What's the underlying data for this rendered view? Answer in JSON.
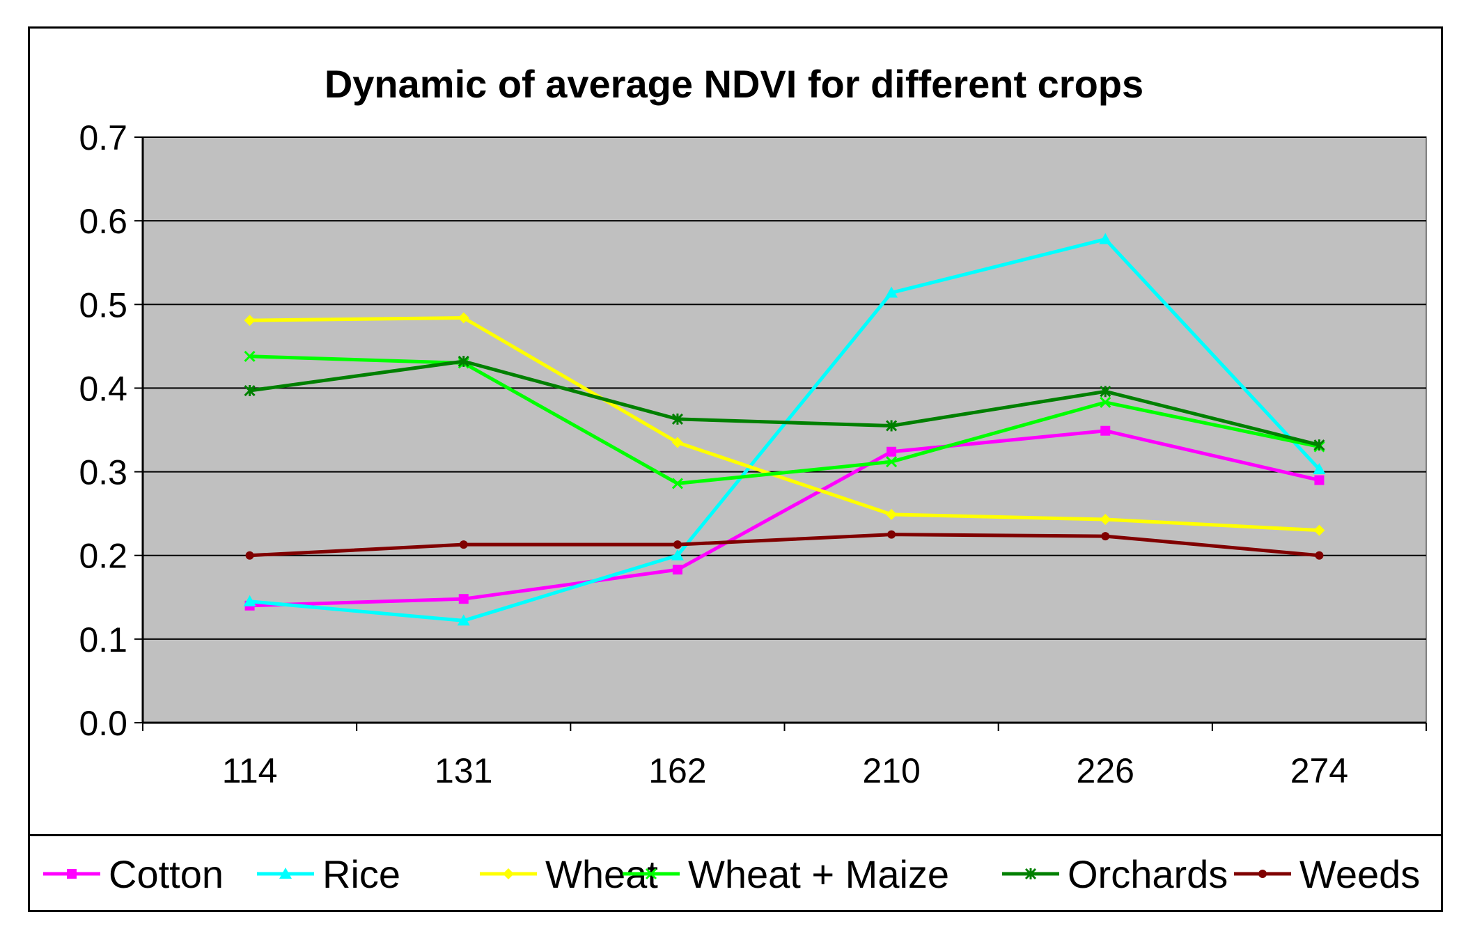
{
  "chart_data": {
    "type": "line",
    "title": "Dynamic of average NDVI for different crops",
    "xlabel": "",
    "ylabel": "",
    "ylim": [
      0,
      0.7
    ],
    "yticks": [
      "0.0",
      "0.1",
      "0.2",
      "0.3",
      "0.4",
      "0.5",
      "0.6",
      "0.7"
    ],
    "grid": true,
    "legend": "bottom",
    "categories": [
      "114",
      "131",
      "162",
      "210",
      "226",
      "274"
    ],
    "series": [
      {
        "name": "Cotton",
        "color": "#ff00ff",
        "marker": "square",
        "values": [
          0.14,
          0.148,
          0.183,
          0.324,
          0.349,
          0.29
        ]
      },
      {
        "name": "Rice",
        "color": "#00ffff",
        "marker": "triangle",
        "values": [
          0.145,
          0.122,
          0.2,
          0.514,
          0.578,
          0.303
        ]
      },
      {
        "name": "Wheat",
        "color": "#ffff00",
        "marker": "diamond",
        "values": [
          0.481,
          0.484,
          0.335,
          0.249,
          0.243,
          0.23
        ]
      },
      {
        "name": "Wheat + Maize",
        "color": "#00ff00",
        "marker": "x",
        "values": [
          0.438,
          0.43,
          0.286,
          0.312,
          0.383,
          0.33
        ]
      },
      {
        "name": "Orchards",
        "color": "#008000",
        "marker": "star",
        "values": [
          0.397,
          0.432,
          0.363,
          0.355,
          0.396,
          0.332
        ]
      },
      {
        "name": "Weeds",
        "color": "#800000",
        "marker": "circle",
        "values": [
          0.2,
          0.213,
          0.213,
          0.225,
          0.223,
          0.2
        ]
      }
    ]
  }
}
